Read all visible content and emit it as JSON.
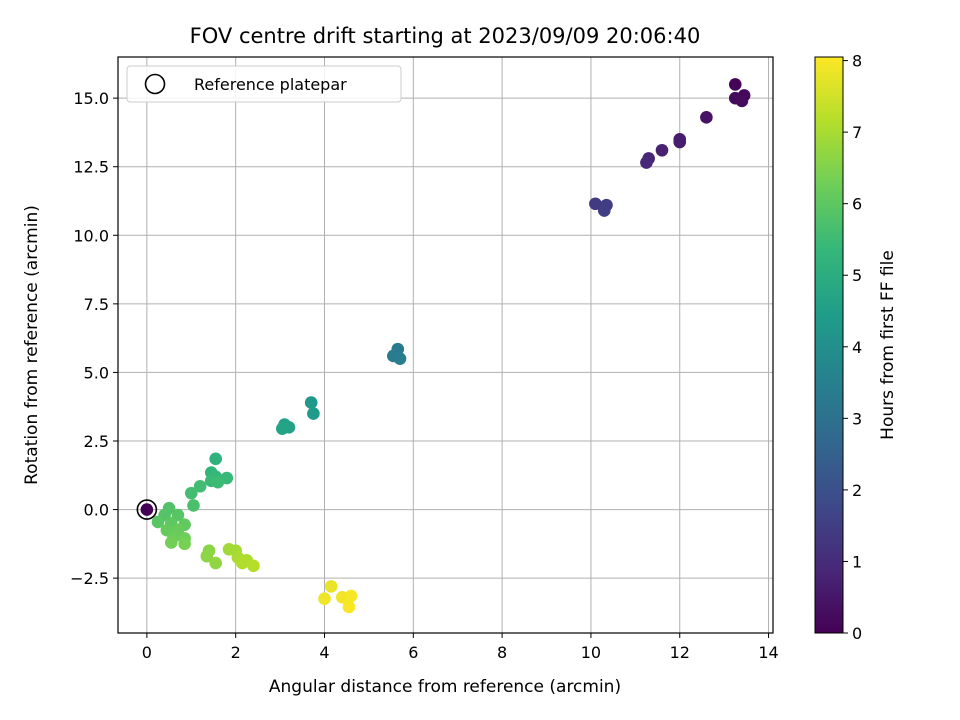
{
  "chart_data": {
    "type": "scatter",
    "title": "FOV centre drift starting at 2023/09/09 20:06:40",
    "xlabel": "Angular distance from reference (arcmin)",
    "ylabel": "Rotation from reference (arcmin)",
    "xlim": [
      -0.65,
      14.1
    ],
    "ylim": [
      -4.5,
      16.5
    ],
    "xticks": [
      0,
      2,
      4,
      6,
      8,
      10,
      12,
      14
    ],
    "yticks": [
      -2.5,
      0.0,
      2.5,
      5.0,
      7.5,
      10.0,
      12.5,
      15.0
    ],
    "xtick_labels": [
      "0",
      "2",
      "4",
      "6",
      "8",
      "10",
      "12",
      "14"
    ],
    "ytick_labels": [
      "−2.5",
      "0.0",
      "2.5",
      "5.0",
      "7.5",
      "10.0",
      "12.5",
      "15.0"
    ],
    "grid": true,
    "legend": {
      "location": "top-left",
      "entries": [
        "Reference platepar"
      ]
    },
    "reference_point": {
      "x": 0,
      "y": 0
    },
    "colorbar": {
      "label": "Hours from first FF file",
      "range": [
        0,
        8.05
      ],
      "ticks": [
        0,
        1,
        2,
        3,
        4,
        5,
        6,
        7,
        8
      ],
      "tick_labels": [
        "0",
        "1",
        "2",
        "3",
        "4",
        "5",
        "6",
        "7",
        "8"
      ],
      "colormap": "viridis",
      "colors": [
        "#440154",
        "#482878",
        "#3e4989",
        "#31688e",
        "#26828e",
        "#1f9e89",
        "#35b779",
        "#6ece58",
        "#b5de2b",
        "#fde725"
      ]
    },
    "series": [
      {
        "name": "FOV centre drift",
        "points": [
          {
            "x": 0.0,
            "y": 0.0,
            "t": 0.0
          },
          {
            "x": 13.25,
            "y": 15.5,
            "t": 0.1
          },
          {
            "x": 13.45,
            "y": 15.1,
            "t": 0.15
          },
          {
            "x": 13.25,
            "y": 15.0,
            "t": 0.2
          },
          {
            "x": 13.4,
            "y": 14.9,
            "t": 0.25
          },
          {
            "x": 12.6,
            "y": 14.3,
            "t": 0.4
          },
          {
            "x": 12.0,
            "y": 13.5,
            "t": 0.6
          },
          {
            "x": 12.0,
            "y": 13.4,
            "t": 0.65
          },
          {
            "x": 11.6,
            "y": 13.1,
            "t": 0.75
          },
          {
            "x": 11.3,
            "y": 12.8,
            "t": 0.85
          },
          {
            "x": 11.25,
            "y": 12.65,
            "t": 0.9
          },
          {
            "x": 10.1,
            "y": 11.15,
            "t": 1.4
          },
          {
            "x": 10.35,
            "y": 11.1,
            "t": 1.45
          },
          {
            "x": 10.3,
            "y": 10.9,
            "t": 1.5
          },
          {
            "x": 5.65,
            "y": 5.85,
            "t": 3.3
          },
          {
            "x": 5.55,
            "y": 5.6,
            "t": 3.35
          },
          {
            "x": 5.7,
            "y": 5.5,
            "t": 3.4
          },
          {
            "x": 3.7,
            "y": 3.9,
            "t": 4.3
          },
          {
            "x": 3.75,
            "y": 3.5,
            "t": 4.35
          },
          {
            "x": 3.1,
            "y": 3.1,
            "t": 4.6
          },
          {
            "x": 3.2,
            "y": 3.0,
            "t": 4.65
          },
          {
            "x": 3.05,
            "y": 2.95,
            "t": 4.7
          },
          {
            "x": 1.55,
            "y": 1.85,
            "t": 5.2
          },
          {
            "x": 1.45,
            "y": 1.35,
            "t": 5.3
          },
          {
            "x": 1.55,
            "y": 1.2,
            "t": 5.35
          },
          {
            "x": 1.8,
            "y": 1.15,
            "t": 5.4
          },
          {
            "x": 1.45,
            "y": 1.05,
            "t": 5.45
          },
          {
            "x": 1.6,
            "y": 1.0,
            "t": 5.5
          },
          {
            "x": 1.2,
            "y": 0.85,
            "t": 5.55
          },
          {
            "x": 1.0,
            "y": 0.6,
            "t": 5.6
          },
          {
            "x": 1.05,
            "y": 0.15,
            "t": 5.7
          },
          {
            "x": 0.5,
            "y": 0.05,
            "t": 5.8
          },
          {
            "x": 0.4,
            "y": -0.2,
            "t": 5.85
          },
          {
            "x": 0.7,
            "y": -0.2,
            "t": 5.9
          },
          {
            "x": 0.25,
            "y": -0.45,
            "t": 5.95
          },
          {
            "x": 0.55,
            "y": -0.5,
            "t": 6.0
          },
          {
            "x": 0.85,
            "y": -0.55,
            "t": 6.05
          },
          {
            "x": 0.45,
            "y": -0.75,
            "t": 6.1
          },
          {
            "x": 0.7,
            "y": -0.75,
            "t": 6.15
          },
          {
            "x": 0.6,
            "y": -1.0,
            "t": 6.2
          },
          {
            "x": 0.85,
            "y": -1.05,
            "t": 6.25
          },
          {
            "x": 0.55,
            "y": -1.2,
            "t": 6.3
          },
          {
            "x": 0.85,
            "y": -1.25,
            "t": 6.35
          },
          {
            "x": 1.4,
            "y": -1.5,
            "t": 6.6
          },
          {
            "x": 1.35,
            "y": -1.7,
            "t": 6.65
          },
          {
            "x": 1.55,
            "y": -1.95,
            "t": 6.7
          },
          {
            "x": 1.85,
            "y": -1.45,
            "t": 6.9
          },
          {
            "x": 2.0,
            "y": -1.5,
            "t": 6.95
          },
          {
            "x": 2.05,
            "y": -1.75,
            "t": 7.0
          },
          {
            "x": 2.25,
            "y": -1.85,
            "t": 7.05
          },
          {
            "x": 2.15,
            "y": -1.95,
            "t": 7.1
          },
          {
            "x": 2.4,
            "y": -2.05,
            "t": 7.15
          },
          {
            "x": 4.15,
            "y": -2.8,
            "t": 7.8
          },
          {
            "x": 4.0,
            "y": -3.25,
            "t": 7.85
          },
          {
            "x": 4.4,
            "y": -3.2,
            "t": 7.9
          },
          {
            "x": 4.6,
            "y": -3.15,
            "t": 7.95
          },
          {
            "x": 4.55,
            "y": -3.55,
            "t": 8.0
          }
        ]
      }
    ]
  }
}
